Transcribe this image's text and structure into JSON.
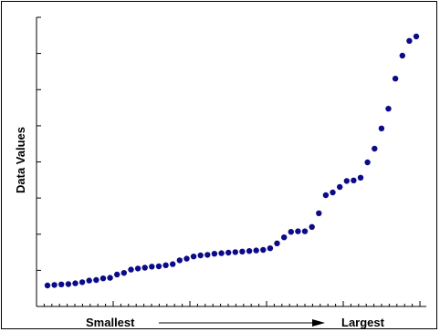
{
  "chart_data": {
    "type": "scatter",
    "title": "",
    "ylabel": "Data Values",
    "xlabel_left": "Smallest",
    "xlabel_right": "Largest",
    "x_tick_labels": [],
    "y_tick_labels": [],
    "grid": false,
    "legend": "none",
    "marker_color": "#0b0b8a",
    "values": [
      0,
      0.2,
      0.4,
      0.5,
      0.8,
      1.2,
      1.8,
      2.0,
      2.6,
      2.8,
      4.0,
      4.6,
      5.8,
      6.2,
      6.5,
      6.9,
      7.0,
      7.4,
      7.8,
      9.2,
      9.8,
      10.6,
      11.0,
      11.2,
      11.6,
      11.8,
      12.0,
      12.2,
      12.4,
      12.6,
      12.8,
      13.0,
      13.6,
      15.4,
      17.6,
      19.6,
      19.8,
      19.8,
      21.4,
      26.4,
      33.0,
      34.0,
      36.0,
      38.2,
      38.4,
      39.4,
      45.0,
      50.0,
      57.4,
      64.6,
      75.6,
      84.0,
      89.4,
      91.0
    ]
  }
}
